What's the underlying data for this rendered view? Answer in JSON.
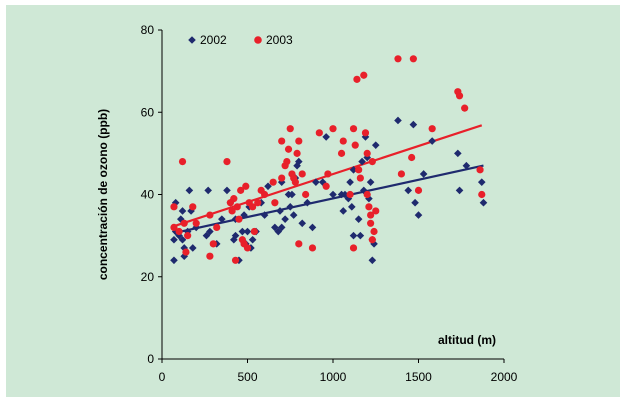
{
  "chart_data": {
    "type": "scatter",
    "xlabel": "altitud (m)",
    "ylabel": "concentración de ozono  (ppb)",
    "xlim": [
      0,
      2000
    ],
    "ylim": [
      0,
      80
    ],
    "xticks": [
      "0",
      "500",
      "1000",
      "1500",
      "2000"
    ],
    "yticks": [
      "0",
      "20",
      "40",
      "60",
      "80"
    ],
    "grid": false,
    "legend_position": "top-left",
    "series": [
      {
        "name": "2002",
        "color": "#1f2a6e",
        "marker": "diamond",
        "points": [
          [
            70,
            24
          ],
          [
            70,
            29
          ],
          [
            80,
            31
          ],
          [
            80,
            38
          ],
          [
            100,
            30
          ],
          [
            110,
            34
          ],
          [
            120,
            36
          ],
          [
            120,
            29
          ],
          [
            130,
            27
          ],
          [
            130,
            25
          ],
          [
            150,
            31
          ],
          [
            160,
            41
          ],
          [
            170,
            36
          ],
          [
            180,
            27
          ],
          [
            200,
            32
          ],
          [
            260,
            30
          ],
          [
            270,
            41
          ],
          [
            280,
            31
          ],
          [
            320,
            28
          ],
          [
            350,
            34
          ],
          [
            380,
            41
          ],
          [
            400,
            38
          ],
          [
            420,
            29
          ],
          [
            430,
            34
          ],
          [
            430,
            30
          ],
          [
            450,
            24
          ],
          [
            470,
            31
          ],
          [
            480,
            35
          ],
          [
            490,
            28
          ],
          [
            500,
            31
          ],
          [
            510,
            37
          ],
          [
            520,
            27
          ],
          [
            530,
            29
          ],
          [
            550,
            31
          ],
          [
            580,
            38
          ],
          [
            600,
            35
          ],
          [
            620,
            42
          ],
          [
            660,
            32
          ],
          [
            680,
            31
          ],
          [
            690,
            36
          ],
          [
            700,
            32
          ],
          [
            700,
            43
          ],
          [
            720,
            34
          ],
          [
            740,
            40
          ],
          [
            750,
            37
          ],
          [
            760,
            40
          ],
          [
            770,
            35
          ],
          [
            780,
            44
          ],
          [
            790,
            47
          ],
          [
            800,
            48
          ],
          [
            820,
            33
          ],
          [
            850,
            38
          ],
          [
            880,
            32
          ],
          [
            900,
            43
          ],
          [
            940,
            43
          ],
          [
            960,
            54
          ],
          [
            1000,
            40
          ],
          [
            1050,
            40
          ],
          [
            1060,
            36
          ],
          [
            1070,
            40
          ],
          [
            1090,
            39
          ],
          [
            1100,
            43
          ],
          [
            1110,
            37
          ],
          [
            1120,
            46
          ],
          [
            1120,
            30
          ],
          [
            1150,
            34
          ],
          [
            1160,
            30
          ],
          [
            1170,
            48
          ],
          [
            1180,
            41
          ],
          [
            1190,
            54
          ],
          [
            1200,
            49
          ],
          [
            1210,
            39
          ],
          [
            1220,
            43
          ],
          [
            1230,
            29
          ],
          [
            1230,
            24
          ],
          [
            1240,
            28
          ],
          [
            1250,
            52
          ],
          [
            1380,
            58
          ],
          [
            1440,
            41
          ],
          [
            1470,
            57
          ],
          [
            1480,
            38
          ],
          [
            1500,
            35
          ],
          [
            1530,
            45
          ],
          [
            1580,
            53
          ],
          [
            1730,
            50
          ],
          [
            1740,
            41
          ],
          [
            1780,
            47
          ],
          [
            1870,
            43
          ],
          [
            1880,
            38
          ]
        ]
      },
      {
        "name": "2003",
        "color": "#e8202a",
        "marker": "circle",
        "points": [
          [
            70,
            37
          ],
          [
            70,
            32
          ],
          [
            100,
            31
          ],
          [
            120,
            48
          ],
          [
            130,
            33
          ],
          [
            140,
            26
          ],
          [
            150,
            30
          ],
          [
            180,
            37
          ],
          [
            200,
            33
          ],
          [
            280,
            35
          ],
          [
            280,
            25
          ],
          [
            300,
            28
          ],
          [
            320,
            32
          ],
          [
            380,
            48
          ],
          [
            400,
            38
          ],
          [
            410,
            36
          ],
          [
            420,
            39
          ],
          [
            430,
            24
          ],
          [
            440,
            37
          ],
          [
            450,
            34
          ],
          [
            460,
            41
          ],
          [
            470,
            29
          ],
          [
            480,
            28
          ],
          [
            490,
            42
          ],
          [
            500,
            27
          ],
          [
            510,
            38
          ],
          [
            530,
            37
          ],
          [
            540,
            31
          ],
          [
            560,
            38
          ],
          [
            580,
            41
          ],
          [
            600,
            40
          ],
          [
            650,
            43
          ],
          [
            660,
            38
          ],
          [
            700,
            53
          ],
          [
            700,
            44
          ],
          [
            720,
            47
          ],
          [
            730,
            48
          ],
          [
            740,
            51
          ],
          [
            750,
            56
          ],
          [
            760,
            45
          ],
          [
            770,
            44
          ],
          [
            780,
            43
          ],
          [
            790,
            50
          ],
          [
            800,
            53
          ],
          [
            800,
            28
          ],
          [
            820,
            45
          ],
          [
            840,
            40
          ],
          [
            880,
            27
          ],
          [
            920,
            55
          ],
          [
            960,
            42
          ],
          [
            970,
            45
          ],
          [
            1000,
            56
          ],
          [
            1050,
            50
          ],
          [
            1060,
            53
          ],
          [
            1100,
            40
          ],
          [
            1120,
            56
          ],
          [
            1120,
            27
          ],
          [
            1130,
            52
          ],
          [
            1140,
            68
          ],
          [
            1150,
            46
          ],
          [
            1160,
            44
          ],
          [
            1180,
            69
          ],
          [
            1190,
            55
          ],
          [
            1200,
            50
          ],
          [
            1200,
            40
          ],
          [
            1210,
            37
          ],
          [
            1220,
            35
          ],
          [
            1220,
            33
          ],
          [
            1230,
            29
          ],
          [
            1230,
            48
          ],
          [
            1240,
            31
          ],
          [
            1250,
            36
          ],
          [
            1380,
            73
          ],
          [
            1400,
            45
          ],
          [
            1460,
            49
          ],
          [
            1470,
            73
          ],
          [
            1500,
            41
          ],
          [
            1580,
            56
          ],
          [
            1730,
            65
          ],
          [
            1740,
            64
          ],
          [
            1770,
            61
          ],
          [
            1860,
            46
          ],
          [
            1870,
            40
          ]
        ]
      }
    ]
  }
}
